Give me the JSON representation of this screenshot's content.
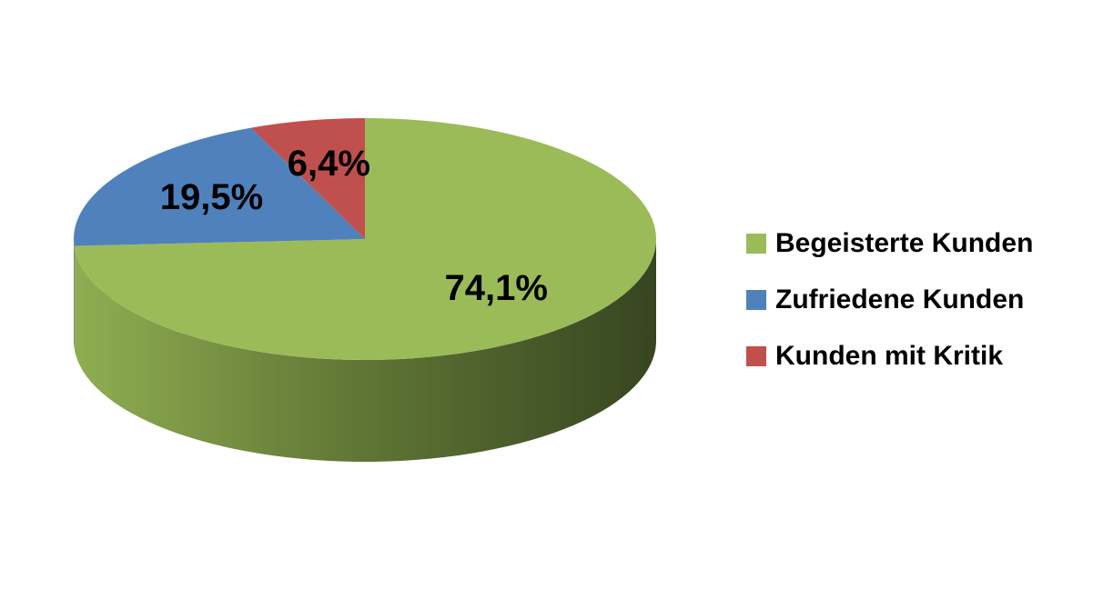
{
  "chart_data": {
    "type": "pie",
    "three_d": true,
    "categories": [
      "Begeisterte Kunden",
      "Zufriedene Kunden",
      "Kunden mit Kritik"
    ],
    "values": [
      74.1,
      19.5,
      6.4
    ],
    "value_labels": [
      "74,1%",
      "19,5%",
      "6,4%"
    ],
    "colors": [
      "#9bbb59",
      "#4f81bd",
      "#c0504d"
    ],
    "legend": "right"
  }
}
